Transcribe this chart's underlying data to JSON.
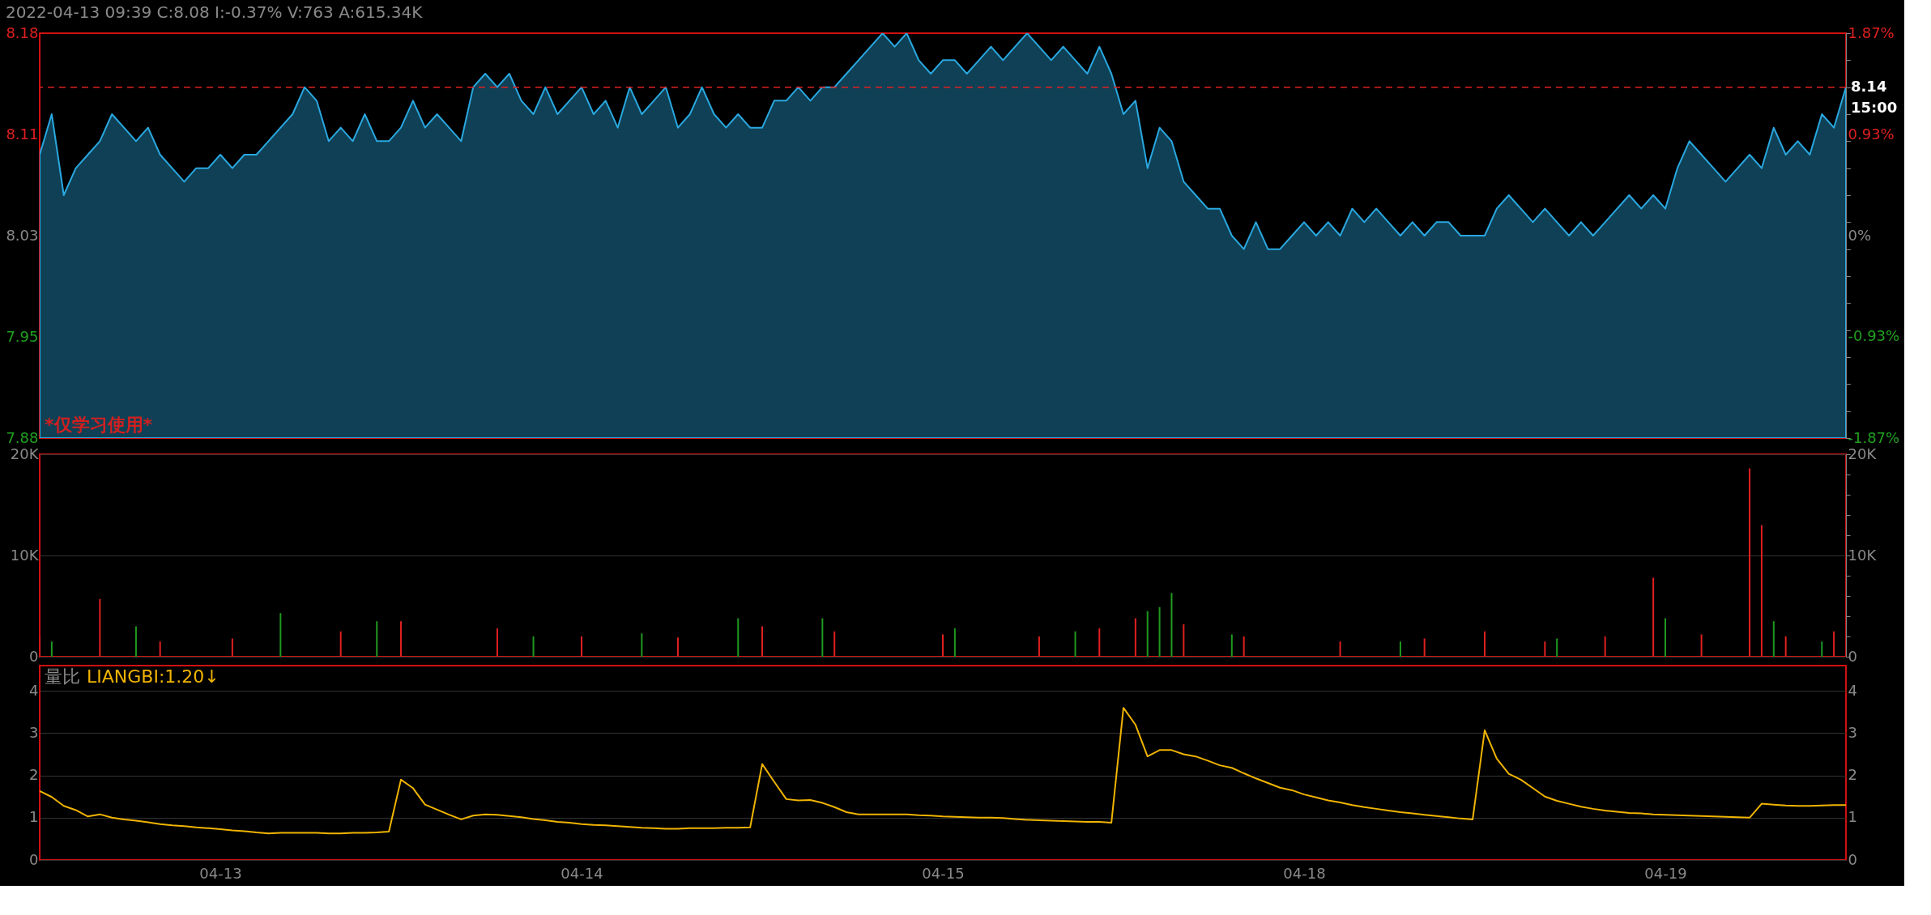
{
  "chart_data": [
    {
      "type": "area",
      "title": "2022-04-13 09:39  C:8.08  I:-0.37%  V:763  A:615.34K",
      "ylim": [
        7.88,
        8.18
      ],
      "categories": [
        null,
        null,
        null,
        null,
        null,
        null,
        null,
        null,
        null,
        null,
        null,
        null,
        null,
        null,
        null,
        null,
        null,
        null,
        null,
        null,
        null,
        null,
        null,
        null,
        null,
        null,
        null,
        null,
        null,
        null,
        null,
        null,
        null,
        null,
        null,
        null,
        null,
        null,
        null,
        null,
        null,
        null,
        null,
        null,
        null,
        null,
        null,
        null,
        null,
        null,
        null,
        null,
        null,
        null,
        null,
        null,
        null,
        null,
        null,
        null,
        null,
        null,
        null,
        null,
        null,
        null,
        null,
        null,
        null,
        null,
        null,
        null,
        null,
        null,
        null,
        null,
        null,
        null,
        null,
        null,
        null,
        null,
        null,
        null,
        null,
        null,
        null,
        null,
        null,
        null,
        null,
        null,
        null,
        null,
        null,
        null,
        null,
        null,
        null,
        null,
        null,
        null,
        null,
        null,
        null,
        null,
        null,
        null,
        null,
        null,
        null,
        null,
        null,
        null,
        null,
        null,
        null,
        null,
        null,
        null,
        null,
        null,
        null,
        null,
        null,
        null,
        null,
        null,
        null,
        null,
        null,
        null,
        null,
        null,
        null,
        null,
        null,
        null,
        null,
        null,
        null,
        null,
        null,
        null,
        null,
        null,
        null,
        null,
        null,
        null,
        null
      ],
      "yticks": [
        8.18,
        {
          "value": 8.105,
          "label": "8.11"
        },
        8.03,
        {
          "value": 7.955,
          "label": "7.95"
        },
        7.88
      ],
      "y2lim": [
        -1.87,
        1.87
      ],
      "y2ticks": [
        {
          "value": 1.87,
          "label": "1.87%"
        },
        {
          "value": 0.93,
          "label": "0.93%"
        },
        {
          "value": 0,
          "label": "0%"
        },
        {
          "value": -0.93,
          "label": "-0.93%"
        },
        {
          "value": -1.87,
          "label": "-1.87%"
        }
      ],
      "tick_labels": "y",
      "grid": false,
      "series": [
        {
          "color": "#29a8e0",
          "values": [
            8.09,
            8.12,
            8.06,
            8.08,
            8.09,
            8.1,
            8.12,
            8.11,
            8.1,
            8.11,
            8.09,
            8.08,
            8.07,
            8.08,
            8.08,
            8.09,
            8.08,
            8.09,
            8.09,
            8.1,
            8.11,
            8.12,
            8.14,
            8.13,
            8.1,
            8.11,
            8.1,
            8.12,
            8.1,
            8.1,
            8.11,
            8.13,
            8.11,
            8.12,
            8.11,
            8.1,
            8.14,
            8.15,
            8.14,
            8.15,
            8.13,
            8.12,
            8.14,
            8.12,
            8.13,
            8.14,
            8.12,
            8.13,
            8.11,
            8.14,
            8.12,
            8.13,
            8.14,
            8.11,
            8.12,
            8.14,
            8.12,
            8.11,
            8.12,
            8.11,
            8.11,
            8.13,
            8.13,
            8.14,
            8.13,
            8.14,
            8.14,
            8.15,
            8.16,
            8.17,
            8.18,
            8.17,
            8.18,
            8.16,
            8.15,
            8.16,
            8.16,
            8.15,
            8.16,
            8.17,
            8.16,
            8.17,
            8.18,
            8.17,
            8.16,
            8.17,
            8.16,
            8.15,
            8.17,
            8.15,
            8.12,
            8.13,
            8.08,
            8.11,
            8.1,
            8.07,
            8.06,
            8.05,
            8.05,
            8.03,
            8.02,
            8.04,
            8.02,
            8.02,
            8.03,
            8.04,
            8.03,
            8.04,
            8.03,
            8.05,
            8.04,
            8.05,
            8.04,
            8.03,
            8.04,
            8.03,
            8.04,
            8.04,
            8.03,
            8.03,
            8.03,
            8.05,
            8.06,
            8.05,
            8.04,
            8.05,
            8.04,
            8.03,
            8.04,
            8.03,
            8.04,
            8.05,
            8.06,
            8.05,
            8.06,
            8.05,
            8.08,
            8.1,
            8.09,
            8.08,
            8.07,
            8.08,
            8.09,
            8.08,
            8.11,
            8.09,
            8.1,
            8.09,
            8.12,
            8.11,
            8.14
          ]
        }
      ],
      "ref_lines": [
        {
          "axis": "y",
          "value": 8.14,
          "label": "8.14",
          "color": "#e02020",
          "line_style": "dashed"
        }
      ],
      "annotations": [
        "*仅学习使用*",
        "15:00"
      ]
    },
    {
      "type": "bar",
      "ylim": [
        0,
        20000
      ],
      "yticks": [
        0,
        {
          "value": 10000,
          "label": "10K"
        },
        {
          "value": 20000,
          "label": "20K"
        }
      ],
      "categories": [
        null,
        null,
        null,
        null,
        null,
        null,
        null,
        null,
        null,
        null,
        null,
        null,
        null,
        null,
        null,
        null,
        null,
        null,
        null,
        null,
        null,
        null,
        null,
        null,
        null,
        null,
        null,
        null,
        null,
        null,
        null,
        null,
        null,
        null,
        null,
        null,
        null,
        null,
        null,
        null,
        null,
        null,
        null,
        null,
        null,
        null,
        null,
        null,
        null,
        null,
        null,
        null,
        null,
        null,
        null,
        null,
        null,
        null,
        null,
        null,
        null,
        null,
        null,
        null,
        null,
        null,
        null,
        null,
        null,
        null,
        null,
        null,
        null,
        null,
        null,
        null,
        null,
        null,
        null,
        null,
        null,
        null,
        null,
        null,
        null,
        null,
        null,
        null,
        null,
        null,
        null,
        null,
        null,
        null,
        null,
        null,
        null,
        null,
        null,
        null,
        null,
        null,
        null,
        null,
        null,
        null,
        null,
        null,
        null,
        null,
        null,
        null,
        null,
        null,
        null,
        null,
        null,
        null,
        null,
        null,
        null,
        null,
        null,
        null,
        null,
        null,
        null,
        null,
        null,
        null,
        null,
        null,
        null,
        null,
        null,
        null,
        null,
        null,
        null,
        null,
        null,
        null,
        null,
        null,
        null,
        null,
        null,
        null,
        null,
        null,
        null
      ],
      "y2lim": [
        0,
        20000
      ],
      "y2ticks": [
        0,
        {
          "value": 10000,
          "label": "10K"
        },
        {
          "value": 20000,
          "label": "20K"
        }
      ],
      "tick_labels": "y",
      "grid": "y",
      "series": [
        {
          "color": "#e0201f",
          "values": [
            2000,
            null,
            null,
            null,
            null,
            5700,
            null,
            null,
            null,
            null,
            1500,
            null,
            null,
            null,
            null,
            null,
            1800,
            null,
            null,
            null,
            null,
            null,
            null,
            null,
            null,
            2500,
            null,
            null,
            null,
            null,
            3500,
            null,
            null,
            null,
            null,
            null,
            null,
            null,
            2800,
            null,
            null,
            null,
            null,
            null,
            null,
            2000,
            null,
            null,
            null,
            null,
            null,
            null,
            null,
            1900,
            null,
            null,
            null,
            null,
            null,
            null,
            3000,
            null,
            null,
            null,
            null,
            null,
            2500,
            null,
            null,
            null,
            null,
            null,
            null,
            null,
            null,
            2200,
            null,
            null,
            null,
            null,
            null,
            null,
            null,
            2000,
            null,
            null,
            null,
            null,
            2800,
            null,
            null,
            3800,
            null,
            null,
            null,
            3200,
            null,
            null,
            null,
            null,
            2000,
            null,
            null,
            null,
            null,
            null,
            null,
            null,
            1500,
            null,
            null,
            null,
            null,
            null,
            null,
            1800,
            null,
            null,
            null,
            null,
            2500,
            null,
            null,
            null,
            null,
            1500,
            null,
            null,
            null,
            null,
            2000,
            null,
            null,
            null,
            7800,
            null,
            null,
            null,
            2200,
            null,
            null,
            null,
            18600,
            13000,
            null,
            2000,
            null,
            null,
            null,
            2500,
            null
          ]
        },
        {
          "color": "#1f9a1f",
          "values": [
            null,
            1500,
            null,
            null,
            null,
            null,
            null,
            null,
            3000,
            null,
            null,
            null,
            null,
            null,
            null,
            null,
            null,
            null,
            null,
            null,
            4300,
            null,
            null,
            null,
            null,
            null,
            null,
            null,
            3500,
            null,
            null,
            null,
            null,
            null,
            null,
            null,
            null,
            null,
            null,
            null,
            null,
            2000,
            null,
            null,
            null,
            null,
            null,
            null,
            null,
            null,
            2300,
            null,
            null,
            null,
            null,
            null,
            null,
            null,
            3800,
            null,
            null,
            null,
            null,
            null,
            null,
            3800,
            null,
            null,
            null,
            null,
            null,
            null,
            null,
            null,
            null,
            null,
            2800,
            null,
            null,
            null,
            null,
            null,
            null,
            null,
            null,
            null,
            2500,
            null,
            null,
            null,
            null,
            null,
            4500,
            4900,
            6300,
            null,
            null,
            null,
            null,
            2200,
            null,
            null,
            null,
            null,
            null,
            null,
            null,
            null,
            null,
            null,
            null,
            null,
            null,
            1500,
            null,
            null,
            null,
            null,
            null,
            null,
            null,
            null,
            null,
            null,
            null,
            null,
            1800,
            null,
            null,
            null,
            null,
            null,
            null,
            null,
            null,
            3800,
            null,
            null,
            null,
            null,
            null,
            null,
            null,
            null,
            3500,
            null,
            null,
            null,
            1500,
            null,
            null
          ]
        }
      ]
    },
    {
      "type": "line",
      "title": "量比",
      "ylim": [
        0,
        4.6
      ],
      "yticks": [
        0,
        1,
        2,
        3,
        4
      ],
      "y2lim": [
        0,
        4.6
      ],
      "y2ticks": [
        0,
        1,
        2,
        3,
        4
      ],
      "categories": [
        null,
        null,
        null,
        null,
        null,
        null,
        null,
        null,
        null,
        null,
        null,
        null,
        null,
        null,
        null,
        "04-13",
        null,
        null,
        null,
        null,
        null,
        null,
        null,
        null,
        null,
        null,
        null,
        null,
        null,
        null,
        null,
        null,
        null,
        null,
        null,
        null,
        null,
        null,
        null,
        null,
        null,
        null,
        null,
        null,
        null,
        "04-14",
        null,
        null,
        null,
        null,
        null,
        null,
        null,
        null,
        null,
        null,
        null,
        null,
        null,
        null,
        null,
        null,
        null,
        null,
        null,
        null,
        null,
        null,
        null,
        null,
        null,
        null,
        null,
        null,
        null,
        "04-15",
        null,
        null,
        null,
        null,
        null,
        null,
        null,
        null,
        null,
        null,
        null,
        null,
        null,
        null,
        null,
        null,
        null,
        null,
        null,
        null,
        null,
        null,
        null,
        null,
        null,
        null,
        null,
        null,
        null,
        "04-18",
        null,
        null,
        null,
        null,
        null,
        null,
        null,
        null,
        null,
        null,
        null,
        null,
        null,
        null,
        null,
        null,
        null,
        null,
        null,
        null,
        null,
        null,
        null,
        null,
        null,
        null,
        null,
        null,
        null,
        "04-19",
        null,
        null,
        null,
        null,
        null,
        null,
        null,
        null,
        null,
        null,
        null,
        null,
        null,
        null,
        null
      ],
      "grid": "y",
      "line_style": "solid",
      "series": [
        {
          "name": "LIANGBI:1.20↓",
          "color": "#f0b400",
          "values": [
            1.63,
            1.49,
            1.28,
            1.18,
            1.03,
            1.08,
            1.0,
            0.96,
            0.93,
            0.89,
            0.85,
            0.82,
            0.8,
            0.77,
            0.75,
            0.73,
            0.7,
            0.68,
            0.65,
            0.63,
            0.64,
            0.64,
            0.64,
            0.64,
            0.63,
            0.63,
            0.64,
            0.64,
            0.65,
            0.67,
            1.9,
            1.7,
            1.31,
            1.19,
            1.07,
            0.96,
            1.05,
            1.08,
            1.07,
            1.04,
            1.01,
            0.97,
            0.94,
            0.9,
            0.88,
            0.85,
            0.83,
            0.82,
            0.8,
            0.78,
            0.76,
            0.75,
            0.74,
            0.74,
            0.75,
            0.75,
            0.75,
            0.76,
            0.76,
            0.77,
            2.27,
            1.85,
            1.44,
            1.41,
            1.42,
            1.35,
            1.25,
            1.13,
            1.08,
            1.08,
            1.08,
            1.08,
            1.08,
            1.06,
            1.05,
            1.03,
            1.02,
            1.01,
            1.0,
            1.0,
            0.99,
            0.97,
            0.95,
            0.94,
            0.93,
            0.92,
            0.91,
            0.9,
            0.9,
            0.88,
            3.6,
            3.2,
            2.45,
            2.6,
            2.6,
            2.5,
            2.45,
            2.35,
            2.24,
            2.18,
            2.05,
            1.93,
            1.82,
            1.71,
            1.65,
            1.55,
            1.48,
            1.41,
            1.36,
            1.3,
            1.25,
            1.21,
            1.17,
            1.13,
            1.1,
            1.07,
            1.04,
            1.01,
            0.98,
            0.96,
            3.07,
            2.4,
            2.04,
            1.9,
            1.7,
            1.5,
            1.4,
            1.33,
            1.26,
            1.21,
            1.17,
            1.14,
            1.11,
            1.1,
            1.08,
            1.07,
            1.06,
            1.05,
            1.04,
            1.03,
            1.02,
            1.01,
            1.0,
            1.33,
            1.31,
            1.29,
            1.28,
            1.28,
            1.29,
            1.3,
            1.3
          ]
        }
      ]
    }
  ]
}
